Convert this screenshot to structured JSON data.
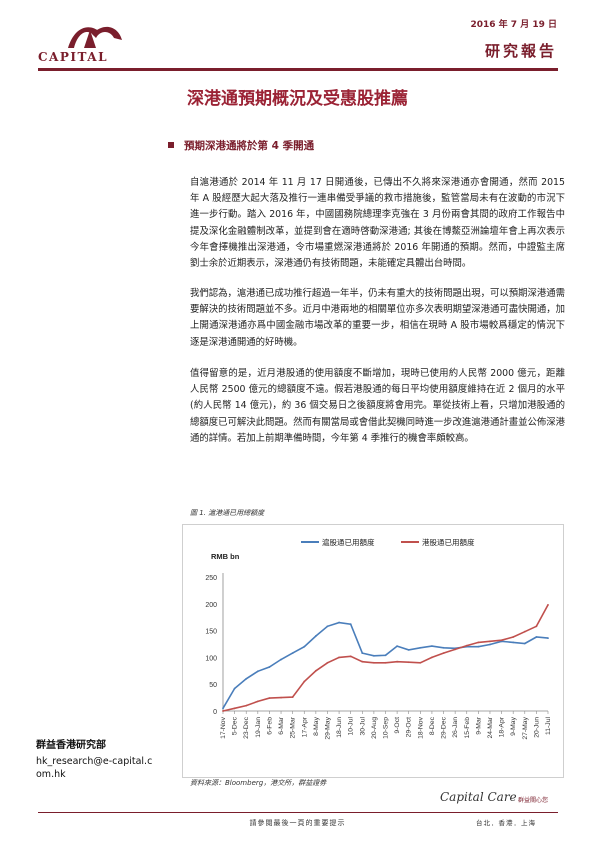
{
  "header": {
    "logo_text": "CAPITAL",
    "date": "2016 年 7 月 19 日",
    "report_type": "研究報告"
  },
  "title": "深港通預期概況及受惠股推薦",
  "section": {
    "heading": "預期深港通將於第 4 季開通"
  },
  "paragraphs": [
    "自滬港通於 2014 年 11 月 17 日開通後，已傳出不久將來深港通亦會開通，然而 2015 年 A 股經歷大起大落及推行一連串備受爭議的救市措施後，監管當局未有在波動的市況下進一步行動。踏入 2016 年，中國國務院總理李克強在 3 月份兩會其間的政府工作報告中提及深化金融體制改革，並提到會在適時啓動深港通; 其後在博鰲亞洲論壇年會上再次表示今年會擇機推出深港通，令市場重燃深港通將於 2016 年開通的預期。然而，中證監主席劉士余於近期表示，深港通仍有技術問題，未能確定具體出台時間。",
    "我們認為，滬港通已成功推行超過一年半，仍未有重大的技術問題出現，可以預期深港通需要解決的技術問題並不多。近月中港兩地的相關單位亦多次表明期望深港通可盡快開通，加上開通深港通亦爲中國金融市場改革的重要一步，相信在現時 A 股市場較爲穩定的情況下逐是深港通開通的好時機。",
    "值得留意的是，近月港股通的使用額度不斷增加，現時已使用約人民幣 2000 億元，距離人民幣 2500 億元的總額度不遠。假若港股通的每日平均使用額度維持在近 2 個月的水平(約人民幣 14 億元)，約 36 個交易日之後額度將會用完。單從技術上看，只增加港股通的總額度已可解決此問題。然而有關當局或會借此契機同時進一步改進滬港通計畫並公佈深港通的詳情。若加上前期準備時間，今年第 4 季推行的機會率頗較高。"
  ],
  "figure": {
    "caption": "圖 1. 滬港通已用總額度",
    "source": "資料來源：Bloomberg，港交所，群益證券"
  },
  "chart_data": {
    "type": "line",
    "ylabel": "RMB bn",
    "ylim": [
      0,
      250
    ],
    "yticks": [
      0,
      50,
      100,
      150,
      200,
      250
    ],
    "xticks": [
      "17-Nov",
      "5-Dec",
      "23-Dec",
      "19-Jan",
      "6-Feb",
      "6-Mar",
      "25-Mar",
      "17-Apr",
      "8-May",
      "29-May",
      "18-Jun",
      "10-Jul",
      "30-Jul",
      "20-Aug",
      "10-Sep",
      "9-Oct",
      "29-Oct",
      "18-Nov",
      "8-Dec",
      "29-Dec",
      "26-Jan",
      "15-Feb",
      "9-Mar",
      "24-Mar",
      "18-Apr",
      "9-May",
      "27-May",
      "20-Jun",
      "11-Jul"
    ],
    "legend_position": "top",
    "series": [
      {
        "name": "滬股通已用額度",
        "color": "#4a7ebb",
        "values": [
          5,
          42,
          60,
          74,
          82,
          96,
          108,
          120,
          140,
          158,
          165,
          162,
          108,
          103,
          104,
          121,
          114,
          118,
          121,
          118,
          117,
          120,
          120,
          124,
          130,
          128,
          126,
          138,
          136
        ]
      },
      {
        "name": "港股通已用額度",
        "color": "#c0504d",
        "values": [
          0,
          5,
          10,
          18,
          24,
          25,
          26,
          55,
          75,
          90,
          100,
          102,
          92,
          90,
          90,
          92,
          91,
          90,
          100,
          108,
          115,
          122,
          128,
          130,
          132,
          138,
          148,
          158,
          198
        ]
      }
    ]
  },
  "sidebar": {
    "org": "群益香港研究部",
    "email": "hk_research@e-capital.com.hk"
  },
  "footer": {
    "note": "請參閱最後一頁的重要提示",
    "brand": "Capital Care",
    "brand_cn": "群益關心您",
    "cities": "台北．香港．上海"
  }
}
